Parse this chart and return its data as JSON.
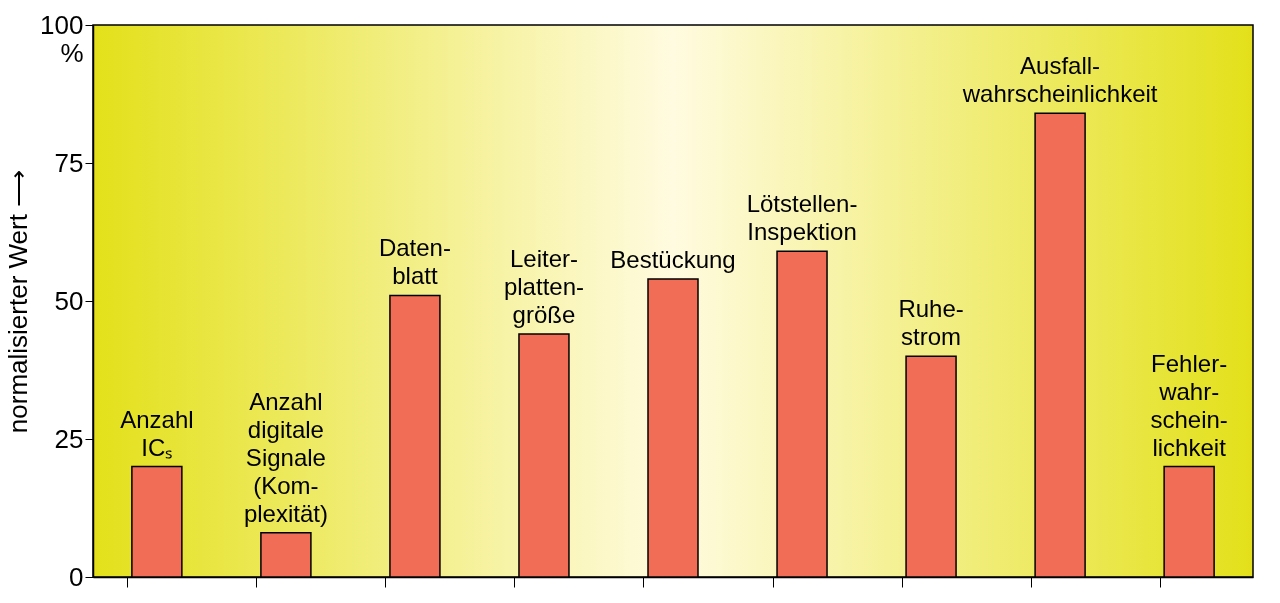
{
  "chart_data": {
    "type": "bar",
    "ylabel": "normalisierter Wert ⟶",
    "categories": [
      "Anzahl\nICₛ",
      "Anzahl\ndigitale\nSignale\n(Kom-\nplexität)",
      "Daten-\nblatt",
      "Leiter-\nplatten-\ngröße",
      "Bestückung",
      "Lötstellen-\nInspektion",
      "Ruhe-\nstrom",
      "Ausfall-\nwahrscheinlichkeit",
      "Fehler-\nwahr-\nschein-\nlichkeit"
    ],
    "values": [
      20,
      8,
      51,
      44,
      54,
      59,
      40,
      84,
      20
    ],
    "color": "#f26d55",
    "ylim": [
      0,
      100
    ],
    "yticks": [
      0,
      25,
      50,
      75,
      {
        "value": 100,
        "label": "100\n%"
      }
    ],
    "grid": false,
    "tick_labels": "y"
  }
}
